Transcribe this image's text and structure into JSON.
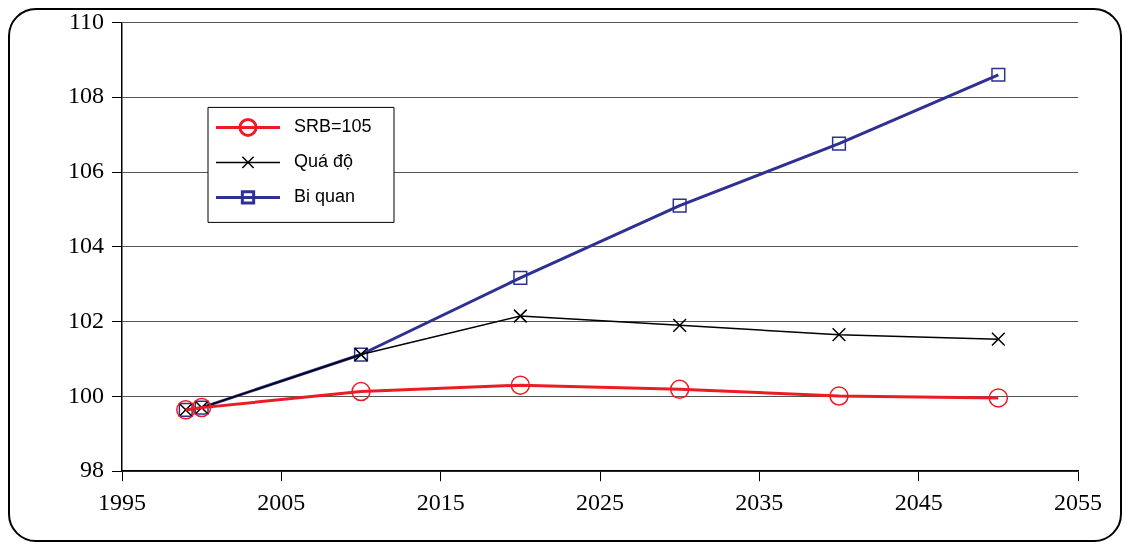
{
  "chart_data": {
    "type": "line",
    "xlim": [
      1995,
      2055
    ],
    "xticks": [
      1995,
      2005,
      2015,
      2025,
      2035,
      2045,
      2055
    ],
    "ylim": [
      98,
      110
    ],
    "yticks": [
      98,
      100,
      102,
      104,
      106,
      108,
      110
    ],
    "grid": "y",
    "legend": "top left",
    "line_style": "solid",
    "x": [
      1999,
      2000,
      2010,
      2020,
      2030,
      2040,
      2050
    ],
    "series": [
      {
        "name": "SRB=105",
        "color": "#ed1c24",
        "marker": "circle",
        "values": [
          99.64,
          99.7,
          100.13,
          100.3,
          100.19,
          100.01,
          99.96
        ]
      },
      {
        "name": "Quá độ",
        "color": "#000000",
        "marker": "cross",
        "values": [
          99.64,
          99.7,
          101.12,
          102.15,
          101.9,
          101.65,
          101.53
        ]
      },
      {
        "name": "Bi quan",
        "color": "#2e3192",
        "marker": "square",
        "values": [
          99.64,
          99.7,
          101.12,
          103.17,
          105.1,
          106.76,
          108.6
        ]
      }
    ]
  }
}
